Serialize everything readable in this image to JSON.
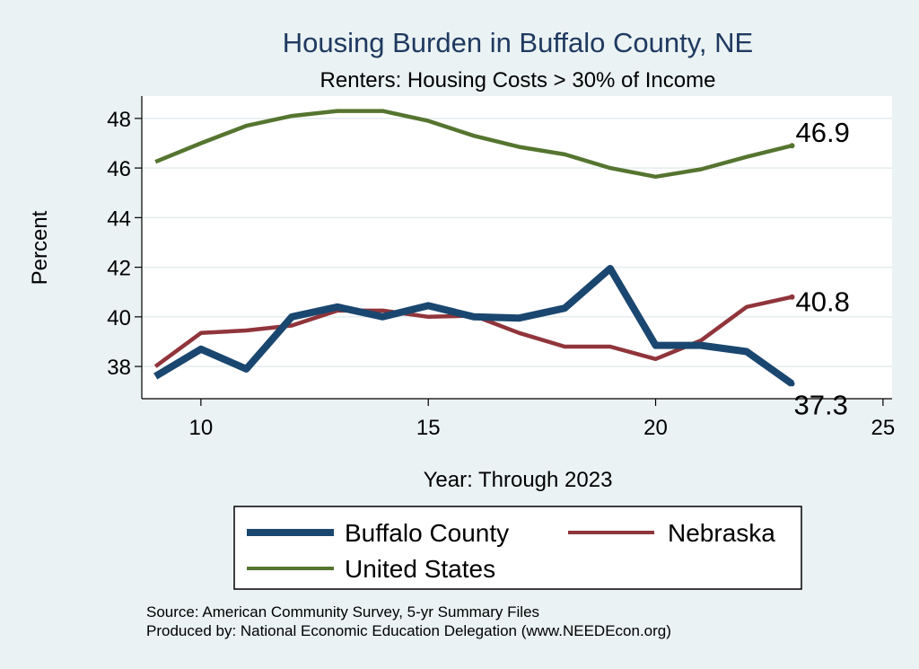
{
  "chart_data": {
    "type": "line",
    "title": "Housing Burden in Buffalo County, NE",
    "subtitle": "Renters: Housing Costs > 30% of Income",
    "xlabel": "Year: Through 2023",
    "ylabel": "Percent",
    "xlim": [
      8.7,
      25.2
    ],
    "ylim": [
      36.7,
      48.9
    ],
    "xticks": [
      10,
      15,
      20,
      25
    ],
    "yticks": [
      38,
      40,
      42,
      44,
      46,
      48
    ],
    "grid": true,
    "legend_position": "bottom",
    "x": [
      9,
      10,
      11,
      12,
      13,
      14,
      15,
      16,
      17,
      18,
      19,
      20,
      21,
      22,
      23
    ],
    "series": [
      {
        "key": "buffalo",
        "name": "Buffalo County",
        "color": "#1a476f",
        "values": [
          37.6,
          38.7,
          37.9,
          40.0,
          40.4,
          40.0,
          40.45,
          40.0,
          39.95,
          40.35,
          41.95,
          38.85,
          38.85,
          38.6,
          37.3
        ],
        "end_label": "37.3"
      },
      {
        "key": "nebraska",
        "name": "Nebraska",
        "color": "#90353b",
        "values": [
          38.0,
          39.35,
          39.45,
          39.65,
          40.25,
          40.25,
          40.0,
          40.05,
          39.35,
          38.8,
          38.8,
          38.3,
          39.05,
          40.4,
          40.8
        ],
        "end_label": "40.8"
      },
      {
        "key": "us",
        "name": "United States",
        "color": "#55752f",
        "values": [
          46.25,
          47.0,
          47.7,
          48.1,
          48.3,
          48.3,
          47.9,
          47.3,
          46.85,
          46.55,
          46.0,
          45.65,
          45.95,
          46.45,
          46.9
        ],
        "end_label": "46.9"
      }
    ]
  },
  "footer": {
    "source": "Source: American Community Survey, 5-yr Summary Files",
    "produced": "Produced by: National Economic Education Delegation (www.NEEDEcon.org)"
  }
}
